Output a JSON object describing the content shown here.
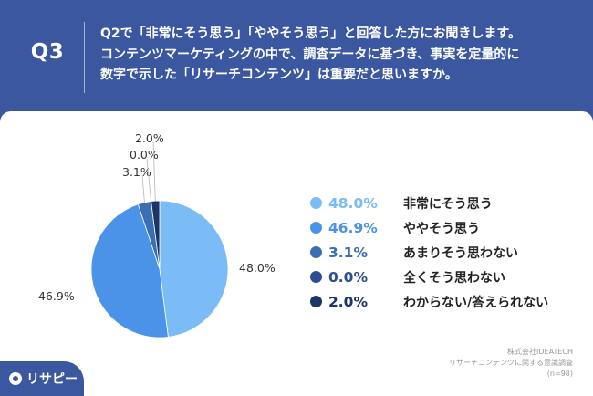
{
  "header": {
    "q_label": "Q3",
    "question_lines": [
      "Q2で「非常にそう思う」「ややそう思う」と回答した方にお聞きします。",
      "コンテンツマーケティングの中で、調査データに基づき、事実を定量的に",
      "数字で示した「リサーチコンテンツ」は重要だと思いますか。"
    ]
  },
  "chart_data": {
    "type": "pie",
    "categories": [
      "非常にそう思う",
      "ややそう思う",
      "あまりそう思わない",
      "全くそう思わない",
      "わからない/答えられない"
    ],
    "values": [
      48.0,
      46.9,
      3.1,
      0.0,
      2.0
    ],
    "value_labels": [
      "48.0%",
      "46.9%",
      "3.1%",
      "0.0%",
      "2.0%"
    ],
    "colors": [
      "#7bbcf6",
      "#4b93e8",
      "#3a6fb3",
      "#2d4f8f",
      "#1a3566"
    ],
    "legend_position": "right",
    "start": "12 o'clock",
    "direction": "clockwise"
  },
  "source": {
    "lines": [
      "株式会社IDEATECH",
      "リサーチコンテンツに関する意識調査",
      "(n=98)"
    ]
  },
  "brand": {
    "name": "リサピー"
  }
}
